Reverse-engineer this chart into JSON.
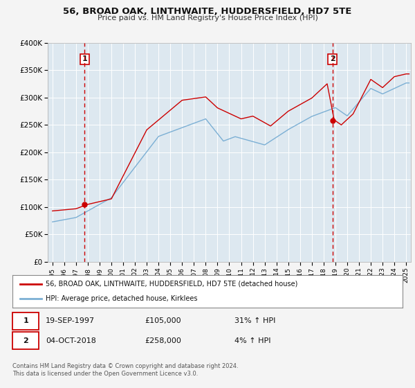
{
  "title": "56, BROAD OAK, LINTHWAITE, HUDDERSFIELD, HD7 5TE",
  "subtitle": "Price paid vs. HM Land Registry's House Price Index (HPI)",
  "legend_label_red": "56, BROAD OAK, LINTHWAITE, HUDDERSFIELD, HD7 5TE (detached house)",
  "legend_label_blue": "HPI: Average price, detached house, Kirklees",
  "sale1_date": "19-SEP-1997",
  "sale1_price": "£105,000",
  "sale1_hpi": "31% ↑ HPI",
  "sale1_year": 1997.72,
  "sale1_value": 105000,
  "sale2_date": "04-OCT-2018",
  "sale2_price": "£258,000",
  "sale2_hpi": "4% ↑ HPI",
  "sale2_year": 2018.75,
  "sale2_value": 258000,
  "footer": "Contains HM Land Registry data © Crown copyright and database right 2024.\nThis data is licensed under the Open Government Licence v3.0.",
  "bg_color": "#f4f4f4",
  "plot_bg_color": "#dde8f0",
  "red_color": "#cc0000",
  "blue_color": "#7bafd4",
  "grid_color": "#ffffff",
  "vline_color": "#cc0000",
  "ylim": [
    0,
    400000
  ],
  "yticks": [
    0,
    50000,
    100000,
    150000,
    200000,
    250000,
    300000,
    350000,
    400000
  ],
  "ylabels": [
    "£0",
    "£50K",
    "£100K",
    "£150K",
    "£200K",
    "£250K",
    "£300K",
    "£350K",
    "£400K"
  ],
  "xlim_start": 1994.6,
  "xlim_end": 2025.4,
  "xticks": [
    1995,
    1996,
    1997,
    1998,
    1999,
    2000,
    2001,
    2002,
    2003,
    2004,
    2005,
    2006,
    2007,
    2008,
    2009,
    2010,
    2011,
    2012,
    2013,
    2014,
    2015,
    2016,
    2017,
    2018,
    2019,
    2020,
    2021,
    2022,
    2023,
    2024,
    2025
  ]
}
